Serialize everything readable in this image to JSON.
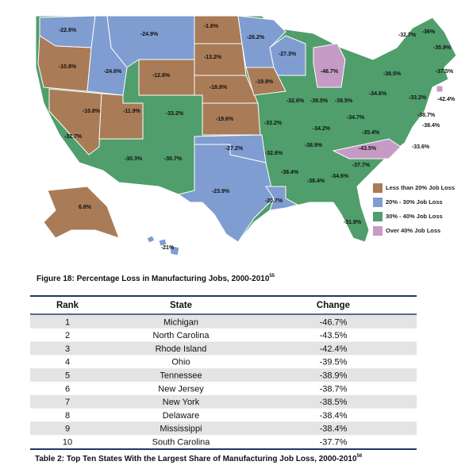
{
  "map": {
    "labels": [
      "-22.8%",
      "-24.9%",
      "-1.6%",
      "-26.2%",
      "-27.3%",
      "-46.7%",
      "-32.7%",
      "-36%",
      "-35.9%",
      "-37.5%",
      "-10.8%",
      "-24.6%",
      "-13.2%",
      "-12.8%",
      "-18.8%",
      "-19.9%",
      "-38.5%",
      "-34.6%",
      "-33.2%",
      "-42.4%",
      "-10.8%",
      "-11.9%",
      "-33.2%",
      "-19.6%",
      "-32.6%",
      "-39.5%",
      "-39.5%",
      "-38.7%",
      "-38.4%",
      "-34.7%",
      "-33.2%",
      "-34.2%",
      "-35.4%",
      "-32.7%",
      "-38.9%",
      "-43.5%",
      "-33.6%",
      "-30.3%",
      "-30.7%",
      "-27.2%",
      "-32.6%",
      "-37.7%",
      "-38.4%",
      "-38.4%",
      "-34.6%",
      "-23.9%",
      "-20.7%",
      "-31.9%",
      "6.8%",
      "-21%"
    ],
    "legend": [
      {
        "label": "Less than 20% Job Loss",
        "color": "#a97b57"
      },
      {
        "label": "20% - 30% Job Loss",
        "color": "#7f9dd0"
      },
      {
        "label": "30% - 40% Job Loss",
        "color": "#4f9e6b"
      },
      {
        "label": "Over 40% Job Loss",
        "color": "#c59bc6"
      }
    ]
  },
  "figure_caption": {
    "text": "Figure 18: Percentage Loss in Manufacturing Jobs, 2000-2010",
    "note": "55"
  },
  "table": {
    "header": [
      "Rank",
      "State",
      "Change"
    ],
    "rows": [
      [
        "1",
        "Michigan",
        "-46.7%"
      ],
      [
        "2",
        "North Carolina",
        "-43.5%"
      ],
      [
        "3",
        "Rhode Island",
        "-42.4%"
      ],
      [
        "4",
        "Ohio",
        "-39.5%"
      ],
      [
        "5",
        "Tennessee",
        "-38.9%"
      ],
      [
        "6",
        "New Jersey",
        "-38.7%"
      ],
      [
        "7",
        "New York",
        "-38.5%"
      ],
      [
        "8",
        "Delaware",
        "-38.4%"
      ],
      [
        "9",
        "Mississippi",
        "-38.4%"
      ],
      [
        "10",
        "South Carolina",
        "-37.7%"
      ]
    ]
  },
  "table_caption": {
    "text": "Table 2: Top Ten States With the Largest Share of Manufacturing Job Loss, 2000-2010",
    "note": "56"
  }
}
